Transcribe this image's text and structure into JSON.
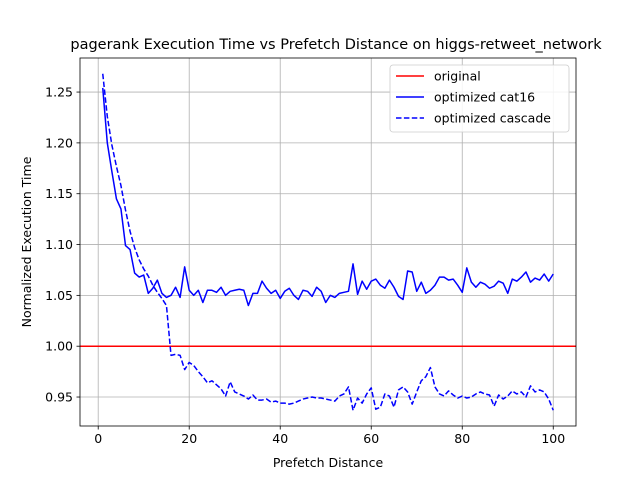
{
  "chart_data": {
    "type": "line",
    "title": "pagerank Execution Time vs Prefetch Distance on higgs-retweet_network",
    "xlabel": "Prefetch Distance",
    "ylabel": "Normalized Execution Time",
    "xlim": [
      -4.0,
      105.0
    ],
    "ylim": [
      0.9215,
      1.2835
    ],
    "xticks": [
      0,
      20,
      40,
      60,
      80,
      100
    ],
    "yticks": [
      0.95,
      1.0,
      1.05,
      1.1,
      1.15,
      1.2,
      1.25
    ],
    "grid": true,
    "legend_position": "top-right",
    "reference_line": {
      "name": "original",
      "y": 1.0,
      "color": "#ff0000"
    },
    "series": [
      {
        "name": "optimized cat16",
        "color": "#0000ff",
        "style": "solid",
        "x": [
          1,
          2,
          3,
          4,
          5,
          6,
          7,
          8,
          9,
          10,
          11,
          12,
          13,
          14,
          15,
          16,
          17,
          18,
          19,
          20,
          21,
          22,
          23,
          24,
          25,
          26,
          27,
          28,
          29,
          30,
          31,
          32,
          33,
          34,
          35,
          36,
          37,
          38,
          39,
          40,
          41,
          42,
          43,
          44,
          45,
          46,
          47,
          48,
          49,
          50,
          51,
          52,
          53,
          54,
          55,
          56,
          57,
          58,
          59,
          60,
          61,
          62,
          63,
          64,
          65,
          66,
          67,
          68,
          69,
          70,
          71,
          72,
          73,
          74,
          75,
          76,
          77,
          78,
          79,
          80,
          81,
          82,
          83,
          84,
          85,
          86,
          87,
          88,
          89,
          90,
          91,
          92,
          93,
          94,
          95,
          96,
          97,
          98,
          99,
          100
        ],
        "y": [
          1.254,
          1.2,
          1.172,
          1.145,
          1.135,
          1.099,
          1.095,
          1.072,
          1.068,
          1.07,
          1.052,
          1.057,
          1.065,
          1.052,
          1.048,
          1.05,
          1.058,
          1.048,
          1.078,
          1.055,
          1.05,
          1.055,
          1.043,
          1.055,
          1.055,
          1.053,
          1.058,
          1.05,
          1.054,
          1.055,
          1.056,
          1.055,
          1.04,
          1.052,
          1.052,
          1.064,
          1.057,
          1.052,
          1.055,
          1.047,
          1.054,
          1.057,
          1.05,
          1.046,
          1.055,
          1.054,
          1.049,
          1.058,
          1.054,
          1.043,
          1.05,
          1.048,
          1.052,
          1.053,
          1.054,
          1.081,
          1.051,
          1.064,
          1.056,
          1.064,
          1.066,
          1.06,
          1.057,
          1.065,
          1.058,
          1.049,
          1.046,
          1.074,
          1.073,
          1.054,
          1.063,
          1.052,
          1.055,
          1.06,
          1.068,
          1.068,
          1.065,
          1.066,
          1.06,
          1.053,
          1.077,
          1.063,
          1.058,
          1.063,
          1.061,
          1.057,
          1.059,
          1.064,
          1.062,
          1.052,
          1.066,
          1.064,
          1.068,
          1.073,
          1.063,
          1.067,
          1.065,
          1.071,
          1.064,
          1.071
        ]
      },
      {
        "name": "optimized cascade",
        "color": "#0000ff",
        "style": "dashed",
        "x": [
          1,
          2,
          3,
          4,
          5,
          6,
          7,
          8,
          9,
          10,
          11,
          12,
          13,
          14,
          15,
          16,
          17,
          18,
          19,
          20,
          21,
          22,
          23,
          24,
          25,
          26,
          27,
          28,
          29,
          30,
          31,
          32,
          33,
          34,
          35,
          36,
          37,
          38,
          39,
          40,
          41,
          42,
          43,
          44,
          45,
          46,
          47,
          48,
          49,
          50,
          51,
          52,
          53,
          54,
          55,
          56,
          57,
          58,
          59,
          60,
          61,
          62,
          63,
          64,
          65,
          66,
          67,
          68,
          69,
          70,
          71,
          72,
          73,
          74,
          75,
          76,
          77,
          78,
          79,
          80,
          81,
          82,
          83,
          84,
          85,
          86,
          87,
          88,
          89,
          90,
          91,
          92,
          93,
          94,
          95,
          96,
          97,
          98,
          99,
          100
        ],
        "y": [
          1.268,
          1.226,
          1.198,
          1.177,
          1.158,
          1.134,
          1.113,
          1.097,
          1.085,
          1.076,
          1.069,
          1.06,
          1.053,
          1.047,
          1.04,
          0.991,
          0.992,
          0.991,
          0.977,
          0.984,
          0.981,
          0.975,
          0.97,
          0.964,
          0.966,
          0.962,
          0.958,
          0.951,
          0.965,
          0.955,
          0.953,
          0.951,
          0.948,
          0.952,
          0.947,
          0.947,
          0.948,
          0.945,
          0.946,
          0.944,
          0.944,
          0.943,
          0.944,
          0.946,
          0.948,
          0.949,
          0.95,
          0.949,
          0.949,
          0.948,
          0.947,
          0.946,
          0.951,
          0.953,
          0.96,
          0.937,
          0.949,
          0.944,
          0.953,
          0.959,
          0.938,
          0.94,
          0.953,
          0.951,
          0.94,
          0.957,
          0.96,
          0.955,
          0.943,
          0.955,
          0.966,
          0.97,
          0.979,
          0.96,
          0.953,
          0.951,
          0.956,
          0.952,
          0.949,
          0.951,
          0.949,
          0.95,
          0.953,
          0.955,
          0.953,
          0.952,
          0.941,
          0.952,
          0.948,
          0.951,
          0.956,
          0.953,
          0.955,
          0.95,
          0.961,
          0.955,
          0.957,
          0.955,
          0.948,
          0.937
        ]
      }
    ]
  }
}
